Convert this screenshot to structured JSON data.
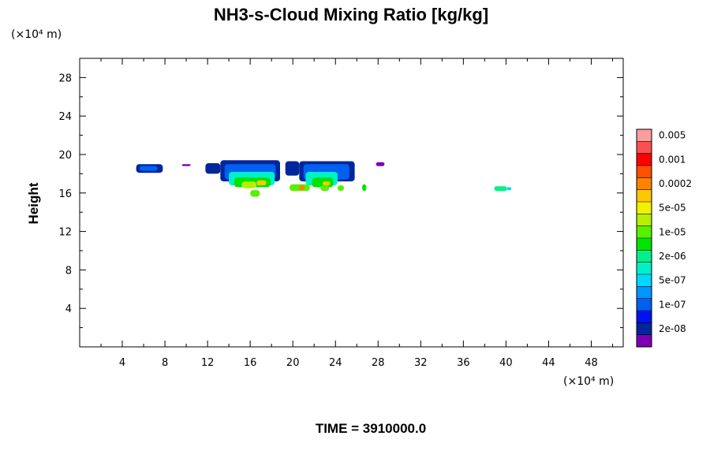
{
  "chart_data": {
    "type": "heatmap",
    "title": "NH3-s-Cloud Mixing Ratio [kg/kg]",
    "ylabel": "Height",
    "xlabel": "",
    "x_unit": "(×10⁴ m)",
    "y_unit": "(×10⁴ m)",
    "xlim": [
      0,
      51
    ],
    "ylim": [
      0,
      30
    ],
    "x_ticks": [
      4,
      8,
      12,
      16,
      20,
      24,
      28,
      32,
      36,
      40,
      44,
      48
    ],
    "y_ticks": [
      4,
      8,
      12,
      16,
      20,
      24,
      28
    ],
    "grid": false,
    "legend_position": "right",
    "colorbar": {
      "colors": [
        "#7b00b4",
        "#00269c",
        "#0012f0",
        "#0060f0",
        "#0096ff",
        "#00d8ff",
        "#00f0c8",
        "#00f08c",
        "#00e400",
        "#58f000",
        "#b4f000",
        "#f0f000",
        "#ffc800",
        "#ff8200",
        "#ff5000",
        "#ff0000",
        "#ff5050",
        "#ff9c9c"
      ],
      "labels": [
        "2e-08",
        "1e-07",
        "5e-07",
        "2e-06",
        "1e-05",
        "5e-05",
        "0.0002",
        "0.001",
        "0.005"
      ]
    },
    "regions": [
      {
        "level": 1,
        "x0": 5.3,
        "x1": 7.8,
        "y0": 18.1,
        "y1": 19.0
      },
      {
        "level": 3,
        "x0": 5.6,
        "x1": 7.3,
        "y0": 18.3,
        "y1": 18.8
      },
      {
        "level": 0,
        "x0": 9.6,
        "x1": 10.4,
        "y0": 18.8,
        "y1": 19.0
      },
      {
        "level": 1,
        "x0": 11.8,
        "x1": 13.2,
        "y0": 18.0,
        "y1": 19.1
      },
      {
        "level": 1,
        "x0": 13.2,
        "x1": 18.8,
        "y0": 17.2,
        "y1": 19.4
      },
      {
        "level": 3,
        "x0": 13.6,
        "x1": 18.4,
        "y0": 17.4,
        "y1": 19.0
      },
      {
        "level": 6,
        "x0": 14.0,
        "x1": 18.3,
        "y0": 16.8,
        "y1": 18.2
      },
      {
        "level": 8,
        "x0": 14.5,
        "x1": 17.9,
        "y0": 16.6,
        "y1": 17.6
      },
      {
        "level": 10,
        "x0": 15.2,
        "x1": 16.6,
        "y0": 16.5,
        "y1": 17.2
      },
      {
        "level": 12,
        "x0": 16.6,
        "x1": 17.5,
        "y0": 16.8,
        "y1": 17.3
      },
      {
        "level": 9,
        "x0": 16.0,
        "x1": 16.9,
        "y0": 15.6,
        "y1": 16.3
      },
      {
        "level": 1,
        "x0": 19.3,
        "x1": 20.6,
        "y0": 17.8,
        "y1": 19.3
      },
      {
        "level": 1,
        "x0": 20.6,
        "x1": 25.8,
        "y0": 17.2,
        "y1": 19.3
      },
      {
        "level": 3,
        "x0": 21.0,
        "x1": 25.3,
        "y0": 17.4,
        "y1": 19.0
      },
      {
        "level": 6,
        "x0": 21.2,
        "x1": 24.2,
        "y0": 16.8,
        "y1": 18.2
      },
      {
        "level": 8,
        "x0": 21.8,
        "x1": 23.8,
        "y0": 16.6,
        "y1": 17.6
      },
      {
        "level": 12,
        "x0": 22.8,
        "x1": 23.5,
        "y0": 16.8,
        "y1": 17.2
      },
      {
        "level": 9,
        "x0": 19.7,
        "x1": 21.6,
        "y0": 16.2,
        "y1": 16.9
      },
      {
        "level": 13,
        "x0": 20.6,
        "x1": 21.1,
        "y0": 16.3,
        "y1": 16.8
      },
      {
        "level": 9,
        "x0": 22.6,
        "x1": 23.4,
        "y0": 16.2,
        "y1": 16.8
      },
      {
        "level": 9,
        "x0": 24.2,
        "x1": 24.8,
        "y0": 16.2,
        "y1": 16.8
      },
      {
        "level": 8,
        "x0": 26.5,
        "x1": 26.9,
        "y0": 16.2,
        "y1": 16.9
      },
      {
        "level": 0,
        "x0": 27.8,
        "x1": 28.6,
        "y0": 18.8,
        "y1": 19.2
      },
      {
        "level": 7,
        "x0": 38.9,
        "x1": 40.1,
        "y0": 16.2,
        "y1": 16.7
      },
      {
        "level": 5,
        "x0": 40.1,
        "x1": 40.5,
        "y0": 16.3,
        "y1": 16.6
      }
    ]
  },
  "time_label": "TIME = 3910000.0"
}
